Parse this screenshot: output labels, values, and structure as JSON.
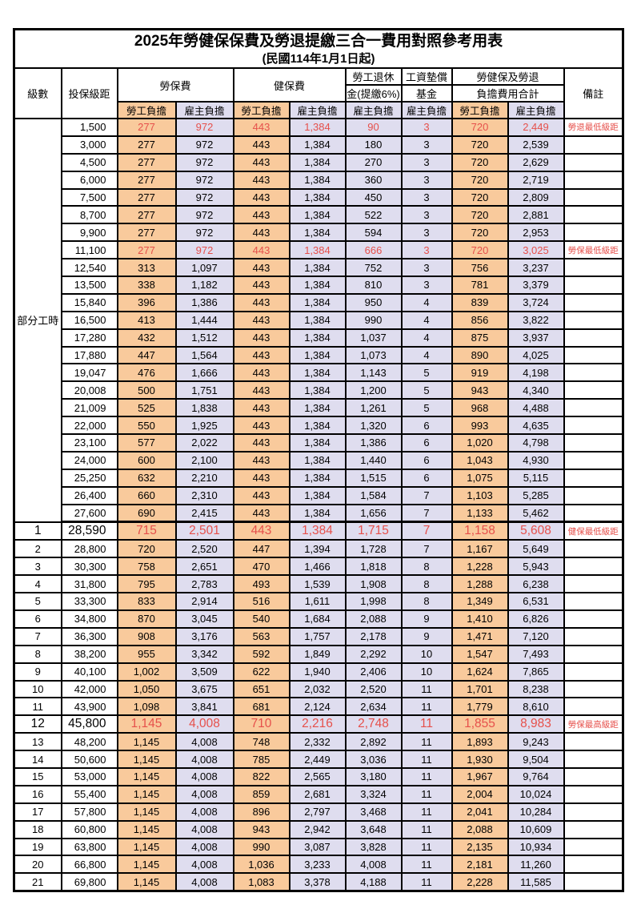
{
  "title": "2025年勞健保保費及勞退提繳三合一費用對照參考用表",
  "subtitle": "(民國114年1月1日起)",
  "columns": {
    "level": "級數",
    "salary": "投保級距",
    "labor": "勞保費",
    "health": "健保費",
    "pension_line1": "勞工退休",
    "pension_line2": "金(提繳6%)",
    "fund_line1": "工資墊償",
    "fund_line2": "基金",
    "total_line1": "勞健保及勞退",
    "total_line2": "負擔費用合計",
    "note": "備註",
    "employee": "勞工負擔",
    "employer": "雇主負擔"
  },
  "colors": {
    "employee_bg": "#F9CA9C",
    "employer_bg": "#DFDDEF",
    "highlight_text": "#E6504B"
  },
  "table": {
    "group_label": "部分工時",
    "group_rows": 23,
    "rows": [
      {
        "salary": "1,500",
        "v": [
          "277",
          "972",
          "443",
          "1,384",
          "90",
          "3",
          "720",
          "2,449"
        ],
        "note": "勞退最低級距",
        "hl": true
      },
      {
        "salary": "3,000",
        "v": [
          "277",
          "972",
          "443",
          "1,384",
          "180",
          "3",
          "720",
          "2,539"
        ]
      },
      {
        "salary": "4,500",
        "v": [
          "277",
          "972",
          "443",
          "1,384",
          "270",
          "3",
          "720",
          "2,629"
        ]
      },
      {
        "salary": "6,000",
        "v": [
          "277",
          "972",
          "443",
          "1,384",
          "360",
          "3",
          "720",
          "2,719"
        ]
      },
      {
        "salary": "7,500",
        "v": [
          "277",
          "972",
          "443",
          "1,384",
          "450",
          "3",
          "720",
          "2,809"
        ]
      },
      {
        "salary": "8,700",
        "v": [
          "277",
          "972",
          "443",
          "1,384",
          "522",
          "3",
          "720",
          "2,881"
        ]
      },
      {
        "salary": "9,900",
        "v": [
          "277",
          "972",
          "443",
          "1,384",
          "594",
          "3",
          "720",
          "2,953"
        ]
      },
      {
        "salary": "11,100",
        "v": [
          "277",
          "972",
          "443",
          "1,384",
          "666",
          "3",
          "720",
          "3,025"
        ],
        "note": "勞保最低級距",
        "hl": true
      },
      {
        "salary": "12,540",
        "v": [
          "313",
          "1,097",
          "443",
          "1,384",
          "752",
          "3",
          "756",
          "3,237"
        ]
      },
      {
        "salary": "13,500",
        "v": [
          "338",
          "1,182",
          "443",
          "1,384",
          "810",
          "3",
          "781",
          "3,379"
        ]
      },
      {
        "salary": "15,840",
        "v": [
          "396",
          "1,386",
          "443",
          "1,384",
          "950",
          "4",
          "839",
          "3,724"
        ]
      },
      {
        "salary": "16,500",
        "v": [
          "413",
          "1,444",
          "443",
          "1,384",
          "990",
          "4",
          "856",
          "3,822"
        ]
      },
      {
        "salary": "17,280",
        "v": [
          "432",
          "1,512",
          "443",
          "1,384",
          "1,037",
          "4",
          "875",
          "3,937"
        ]
      },
      {
        "salary": "17,880",
        "v": [
          "447",
          "1,564",
          "443",
          "1,384",
          "1,073",
          "4",
          "890",
          "4,025"
        ]
      },
      {
        "salary": "19,047",
        "v": [
          "476",
          "1,666",
          "443",
          "1,384",
          "1,143",
          "5",
          "919",
          "4,198"
        ]
      },
      {
        "salary": "20,008",
        "v": [
          "500",
          "1,751",
          "443",
          "1,384",
          "1,200",
          "5",
          "943",
          "4,340"
        ]
      },
      {
        "salary": "21,009",
        "v": [
          "525",
          "1,838",
          "443",
          "1,384",
          "1,261",
          "5",
          "968",
          "4,488"
        ]
      },
      {
        "salary": "22,000",
        "v": [
          "550",
          "1,925",
          "443",
          "1,384",
          "1,320",
          "6",
          "993",
          "4,635"
        ]
      },
      {
        "salary": "23,100",
        "v": [
          "577",
          "2,022",
          "443",
          "1,384",
          "1,386",
          "6",
          "1,020",
          "4,798"
        ]
      },
      {
        "salary": "24,000",
        "v": [
          "600",
          "2,100",
          "443",
          "1,384",
          "1,440",
          "6",
          "1,043",
          "4,930"
        ]
      },
      {
        "salary": "25,250",
        "v": [
          "632",
          "2,210",
          "443",
          "1,384",
          "1,515",
          "6",
          "1,075",
          "5,115"
        ]
      },
      {
        "salary": "26,400",
        "v": [
          "660",
          "2,310",
          "443",
          "1,384",
          "1,584",
          "7",
          "1,103",
          "5,285"
        ]
      },
      {
        "salary": "27,600",
        "v": [
          "690",
          "2,415",
          "443",
          "1,384",
          "1,656",
          "7",
          "1,133",
          "5,462"
        ]
      },
      {
        "level": "1",
        "salary": "28,590",
        "v": [
          "715",
          "2,501",
          "443",
          "1,384",
          "1,715",
          "7",
          "1,158",
          "5,608"
        ],
        "note": "健保最低級距",
        "hl": true,
        "big": true
      },
      {
        "level": "2",
        "salary": "28,800",
        "v": [
          "720",
          "2,520",
          "447",
          "1,394",
          "1,728",
          "7",
          "1,167",
          "5,649"
        ]
      },
      {
        "level": "3",
        "salary": "30,300",
        "v": [
          "758",
          "2,651",
          "470",
          "1,466",
          "1,818",
          "8",
          "1,228",
          "5,943"
        ]
      },
      {
        "level": "4",
        "salary": "31,800",
        "v": [
          "795",
          "2,783",
          "493",
          "1,539",
          "1,908",
          "8",
          "1,288",
          "6,238"
        ]
      },
      {
        "level": "5",
        "salary": "33,300",
        "v": [
          "833",
          "2,914",
          "516",
          "1,611",
          "1,998",
          "8",
          "1,349",
          "6,531"
        ]
      },
      {
        "level": "6",
        "salary": "34,800",
        "v": [
          "870",
          "3,045",
          "540",
          "1,684",
          "2,088",
          "9",
          "1,410",
          "6,826"
        ]
      },
      {
        "level": "7",
        "salary": "36,300",
        "v": [
          "908",
          "3,176",
          "563",
          "1,757",
          "2,178",
          "9",
          "1,471",
          "7,120"
        ]
      },
      {
        "level": "8",
        "salary": "38,200",
        "v": [
          "955",
          "3,342",
          "592",
          "1,849",
          "2,292",
          "10",
          "1,547",
          "7,493"
        ]
      },
      {
        "level": "9",
        "salary": "40,100",
        "v": [
          "1,002",
          "3,509",
          "622",
          "1,940",
          "2,406",
          "10",
          "1,624",
          "7,865"
        ]
      },
      {
        "level": "10",
        "salary": "42,000",
        "v": [
          "1,050",
          "3,675",
          "651",
          "2,032",
          "2,520",
          "11",
          "1,701",
          "8,238"
        ]
      },
      {
        "level": "11",
        "salary": "43,900",
        "v": [
          "1,098",
          "3,841",
          "681",
          "2,124",
          "2,634",
          "11",
          "1,779",
          "8,610"
        ]
      },
      {
        "level": "12",
        "salary": "45,800",
        "v": [
          "1,145",
          "4,008",
          "710",
          "2,216",
          "2,748",
          "11",
          "1,855",
          "8,983"
        ],
        "note": "勞保最高級距",
        "hl": true,
        "big": true
      },
      {
        "level": "13",
        "salary": "48,200",
        "v": [
          "1,145",
          "4,008",
          "748",
          "2,332",
          "2,892",
          "11",
          "1,893",
          "9,243"
        ]
      },
      {
        "level": "14",
        "salary": "50,600",
        "v": [
          "1,145",
          "4,008",
          "785",
          "2,449",
          "3,036",
          "11",
          "1,930",
          "9,504"
        ]
      },
      {
        "level": "15",
        "salary": "53,000",
        "v": [
          "1,145",
          "4,008",
          "822",
          "2,565",
          "3,180",
          "11",
          "1,967",
          "9,764"
        ]
      },
      {
        "level": "16",
        "salary": "55,400",
        "v": [
          "1,145",
          "4,008",
          "859",
          "2,681",
          "3,324",
          "11",
          "2,004",
          "10,024"
        ]
      },
      {
        "level": "17",
        "salary": "57,800",
        "v": [
          "1,145",
          "4,008",
          "896",
          "2,797",
          "3,468",
          "11",
          "2,041",
          "10,284"
        ]
      },
      {
        "level": "18",
        "salary": "60,800",
        "v": [
          "1,145",
          "4,008",
          "943",
          "2,942",
          "3,648",
          "11",
          "2,088",
          "10,609"
        ]
      },
      {
        "level": "19",
        "salary": "63,800",
        "v": [
          "1,145",
          "4,008",
          "990",
          "3,087",
          "3,828",
          "11",
          "2,135",
          "10,934"
        ]
      },
      {
        "level": "20",
        "salary": "66,800",
        "v": [
          "1,145",
          "4,008",
          "1,036",
          "3,233",
          "4,008",
          "11",
          "2,181",
          "11,260"
        ]
      },
      {
        "level": "21",
        "salary": "69,800",
        "v": [
          "1,145",
          "4,008",
          "1,083",
          "3,378",
          "4,188",
          "11",
          "2,228",
          "11,585"
        ]
      }
    ]
  }
}
